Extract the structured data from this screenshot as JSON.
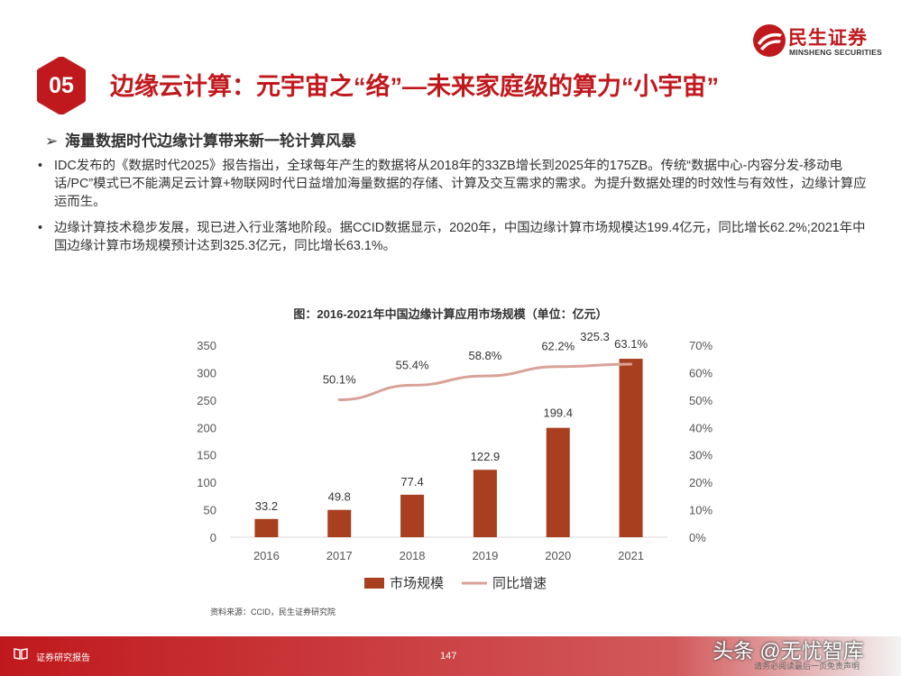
{
  "header": {
    "logo_cn": "民生证券",
    "logo_en": "MINSHENG SECURITIES",
    "section_number": "05",
    "title": "边缘云计算：元宇宙之“络”—未来家庭级的算力“小宇宙”"
  },
  "subheading": {
    "arrow": "➢",
    "text": "海量数据时代边缘计算带来新一轮计算风暴"
  },
  "paragraphs": [
    {
      "bullet": "•",
      "text": "IDC发布的《数据时代2025》报告指出，全球每年产生的数据将从2018年的33ZB增长到2025年的175ZB。传统“数据中心-内容分发-移动电话/PC”模式已不能满足云计算+物联网时代日益增加海量数据的存储、计算及交互需求的需求。为提升数据处理的时效性与有效性，边缘计算应运而生。"
    },
    {
      "bullet": "•",
      "text": "边缘计算技术稳步发展，现已进入行业落地阶段。据CCID数据显示，2020年，中国边缘计算市场规模达199.4亿元，同比增长62.2%;2021年中国边缘计算市场规模预计达到325.3亿元，同比增长63.1%。"
    }
  ],
  "chart_data": {
    "type": "bar+line",
    "title": "图：2016-2021年中国边缘计算应用市场规模（单位：亿元）",
    "categories": [
      "2016",
      "2017",
      "2018",
      "2019",
      "2020",
      "2021"
    ],
    "series": [
      {
        "name": "市场规模",
        "type": "bar",
        "axis": "left",
        "values": [
          33.2,
          49.8,
          77.4,
          122.9,
          199.4,
          325.3
        ],
        "labels": [
          "33.2",
          "49.8",
          "77.4",
          "122.9",
          "199.4",
          "325.3"
        ],
        "color": "#a8401f"
      },
      {
        "name": "同比增速",
        "type": "line",
        "axis": "right",
        "x": [
          "2017",
          "2018",
          "2019",
          "2020",
          "2021"
        ],
        "values": [
          50.1,
          55.4,
          58.8,
          62.2,
          63.1
        ],
        "labels": [
          "50.1%",
          "55.4%",
          "58.8%",
          "62.2%",
          "63.1%"
        ],
        "color": "#d9a299"
      }
    ],
    "y_left": {
      "min": 0,
      "max": 350,
      "ticks": [
        "0",
        "50",
        "100",
        "150",
        "200",
        "250",
        "300",
        "350"
      ]
    },
    "y_right": {
      "min": 0,
      "max": 70,
      "ticks": [
        "0%",
        "10%",
        "20%",
        "30%",
        "40%",
        "50%",
        "60%",
        "70%"
      ]
    },
    "legend": {
      "position": "bottom",
      "items": [
        "市场规模",
        "同比增速"
      ]
    }
  },
  "source": "资料来源：CCID，民生证券研究院",
  "footer": {
    "label": "证券研究报告",
    "page": "147",
    "watermark": "头条 @无忧智库",
    "disclaimer": "请务必阅读最后一页免责声明"
  },
  "colors": {
    "brand": "#c0191d",
    "bar": "#a8401f",
    "line": "#d9a299"
  }
}
